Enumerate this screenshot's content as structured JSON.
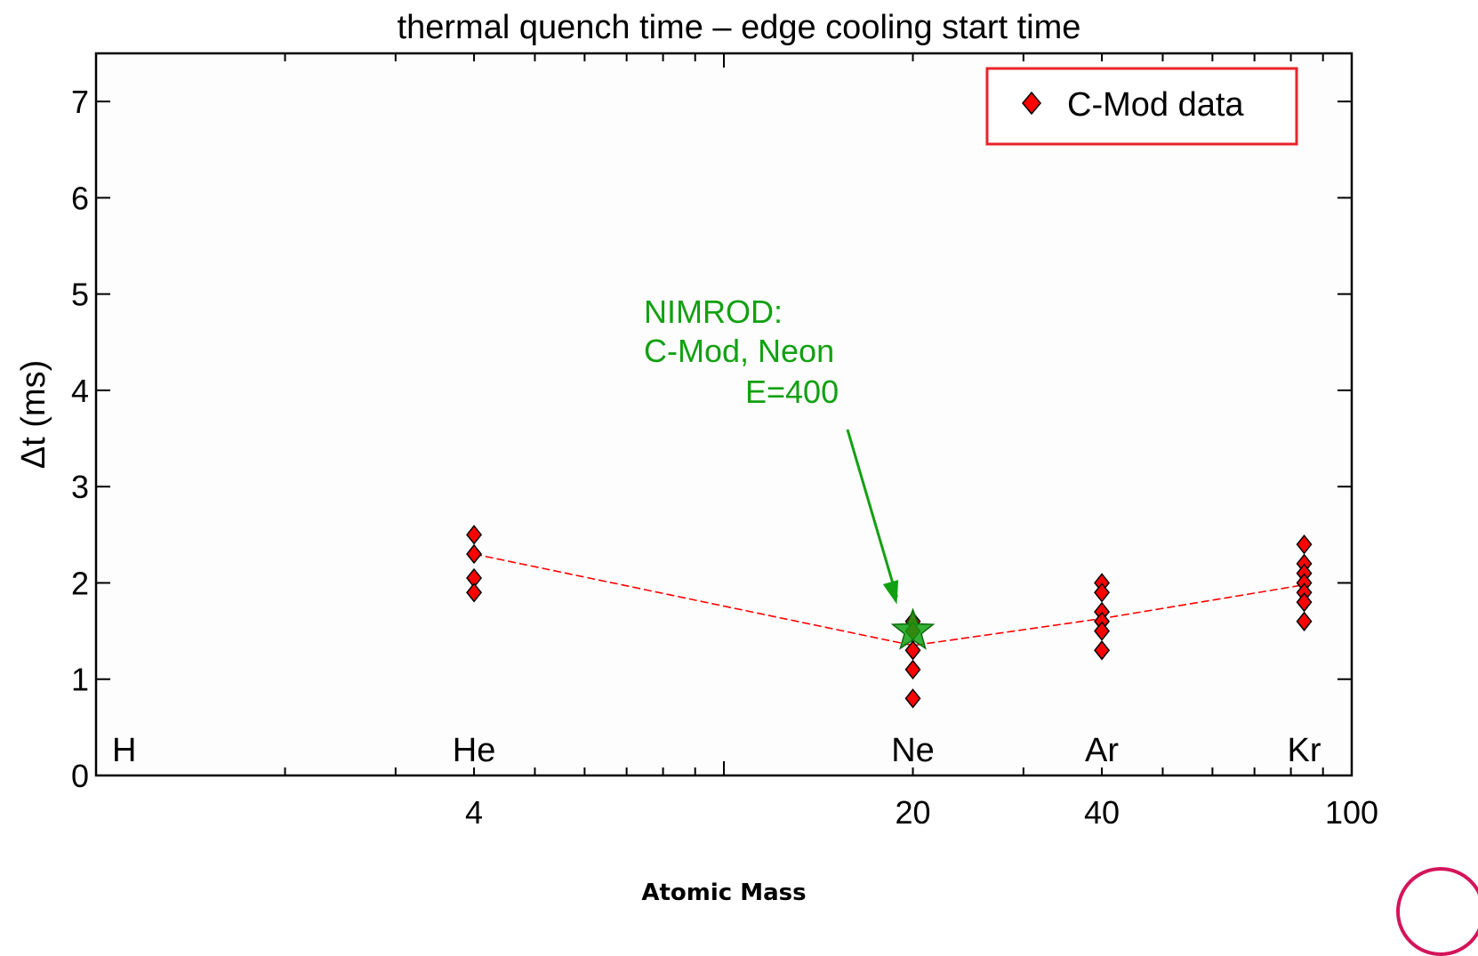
{
  "chart_data": {
    "type": "scatter",
    "title": "thermal quench time – edge cooling start time",
    "xlabel": "Atomic Mass",
    "ylabel": "Δt (ms)",
    "xscale": "log",
    "xlim": [
      1,
      100
    ],
    "ylim": [
      0,
      7.5
    ],
    "x_tick_labels": [
      {
        "value": 4,
        "label": "4"
      },
      {
        "value": 20,
        "label": "20"
      },
      {
        "value": 40,
        "label": "40"
      },
      {
        "value": 100,
        "label": "100"
      }
    ],
    "y_tick_labels": [
      {
        "value": 0,
        "label": "0"
      },
      {
        "value": 1,
        "label": "1"
      },
      {
        "value": 2,
        "label": "2"
      },
      {
        "value": 3,
        "label": "3"
      },
      {
        "value": 4,
        "label": "4"
      },
      {
        "value": 5,
        "label": "5"
      },
      {
        "value": 6,
        "label": "6"
      },
      {
        "value": 7,
        "label": "7"
      }
    ],
    "element_labels": [
      {
        "mass": 1,
        "label": "H"
      },
      {
        "mass": 4,
        "label": "He"
      },
      {
        "mass": 20,
        "label": "Ne"
      },
      {
        "mass": 40,
        "label": "Ar"
      },
      {
        "mass": 84,
        "label": "Kr"
      }
    ],
    "series": [
      {
        "name": "C-Mod data",
        "color": "#ff0000",
        "marker": "diamond",
        "points": [
          {
            "x": 4,
            "y": 2.5
          },
          {
            "x": 4,
            "y": 2.3
          },
          {
            "x": 4,
            "y": 2.05
          },
          {
            "x": 4,
            "y": 1.9
          },
          {
            "x": 20,
            "y": 1.6
          },
          {
            "x": 20,
            "y": 1.5
          },
          {
            "x": 20,
            "y": 1.3
          },
          {
            "x": 20,
            "y": 1.1
          },
          {
            "x": 20,
            "y": 0.8
          },
          {
            "x": 40,
            "y": 2.0
          },
          {
            "x": 40,
            "y": 1.9
          },
          {
            "x": 40,
            "y": 1.7
          },
          {
            "x": 40,
            "y": 1.6
          },
          {
            "x": 40,
            "y": 1.5
          },
          {
            "x": 40,
            "y": 1.3
          },
          {
            "x": 84,
            "y": 2.4
          },
          {
            "x": 84,
            "y": 2.2
          },
          {
            "x": 84,
            "y": 2.1
          },
          {
            "x": 84,
            "y": 2.0
          },
          {
            "x": 84,
            "y": 1.9
          },
          {
            "x": 84,
            "y": 1.8
          },
          {
            "x": 84,
            "y": 1.6
          }
        ]
      }
    ],
    "trend_line": {
      "color": "#ff0000",
      "style": "dashed",
      "points": [
        {
          "x": 4,
          "y": 2.3
        },
        {
          "x": 20,
          "y": 1.35
        },
        {
          "x": 40,
          "y": 1.63
        },
        {
          "x": 84,
          "y": 1.98
        }
      ]
    },
    "annotation": {
      "lines": [
        "NIMROD:",
        "C-Mod, Neon",
        "E=400"
      ],
      "color": "#12a012",
      "marker": "star",
      "point": {
        "x": 20,
        "y": 1.5
      }
    },
    "legend": {
      "position": "top-right",
      "border_color": "#e8232a"
    },
    "grid": false,
    "background": "#fdfdfd"
  }
}
